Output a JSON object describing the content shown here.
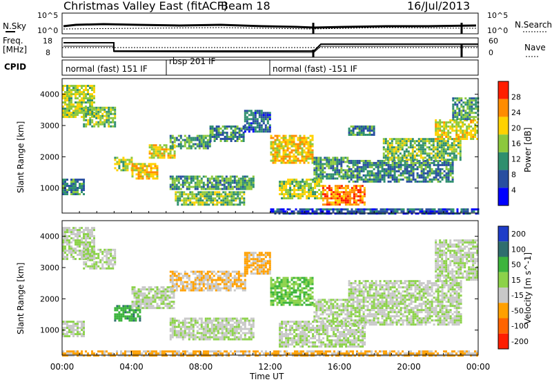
{
  "header": {
    "title": "Christmas Valley East (fitACF)",
    "beam": "Beam 18",
    "date": "16/Jul/2013"
  },
  "panels": {
    "noise": {
      "left_label": "N.Sky",
      "right_label": "N.Search",
      "left_ticks": [
        "10^5",
        "10^0"
      ],
      "right_ticks": [
        "10^5",
        "10^0"
      ]
    },
    "freq": {
      "left_label_1": "Freq.",
      "left_label_2": "[MHz]",
      "right_label": "Nave",
      "left_ticks": [
        "18",
        "8"
      ],
      "right_ticks": [
        "60",
        "0"
      ]
    },
    "cpid": {
      "label": "CPID",
      "segments": [
        {
          "label": "normal (fast) 151 IF",
          "start_hour": 0,
          "end_hour": 6
        },
        {
          "label": "rbsp 201 IF",
          "start_hour": 6,
          "end_hour": 12
        },
        {
          "label": "normal (fast) -151 IF",
          "start_hour": 12,
          "end_hour": 24
        }
      ]
    }
  },
  "chart_data": [
    {
      "type": "heatmap",
      "name": "power",
      "ylabel": "Slant Range [km]",
      "yticks": [
        "1000",
        "2000",
        "3000",
        "4000"
      ],
      "ylim": [
        200,
        4500
      ],
      "colorbar": {
        "label": "Power [dB]",
        "ticks": [
          "4",
          "8",
          "12",
          "16",
          "20",
          "24",
          "28"
        ],
        "range": [
          0,
          30
        ],
        "colors": [
          "#0000ff",
          "#284ea0",
          "#2f8f6e",
          "#8cc83c",
          "#ffd200",
          "#ff8c00",
          "#ff1e00"
        ]
      },
      "regions": [
        {
          "t0": 0.0,
          "t1": 1.8,
          "r0": 3300,
          "r1": 4300,
          "v": 16
        },
        {
          "t0": 1.2,
          "t1": 3.0,
          "r0": 3000,
          "r1": 3600,
          "v": 14
        },
        {
          "t0": 3.0,
          "t1": 4.0,
          "r0": 1600,
          "r1": 2000,
          "v": 16
        },
        {
          "t0": 4.0,
          "t1": 5.5,
          "r0": 1300,
          "r1": 1800,
          "v": 20
        },
        {
          "t0": 5.0,
          "t1": 6.5,
          "r0": 2000,
          "r1": 2400,
          "v": 18
        },
        {
          "t0": 6.2,
          "t1": 8.5,
          "r0": 2300,
          "r1": 2700,
          "v": 12
        },
        {
          "t0": 8.5,
          "t1": 10.5,
          "r0": 2500,
          "r1": 3000,
          "v": 10
        },
        {
          "t0": 10.5,
          "t1": 12.0,
          "r0": 2800,
          "r1": 3500,
          "v": 8
        },
        {
          "t0": 6.2,
          "t1": 11.0,
          "r0": 1000,
          "r1": 1400,
          "v": 12
        },
        {
          "t0": 6.5,
          "t1": 10.5,
          "r0": 500,
          "r1": 900,
          "v": 14
        },
        {
          "t0": 0.0,
          "t1": 1.2,
          "r0": 800,
          "r1": 1300,
          "v": 10
        },
        {
          "t0": 12.0,
          "t1": 14.5,
          "r0": 1800,
          "r1": 2700,
          "v": 20
        },
        {
          "t0": 14.5,
          "t1": 16.5,
          "r0": 1300,
          "r1": 2000,
          "v": 12
        },
        {
          "t0": 12.5,
          "t1": 15.0,
          "r0": 700,
          "r1": 1300,
          "v": 16
        },
        {
          "t0": 15.0,
          "t1": 17.5,
          "r0": 500,
          "r1": 1100,
          "v": 24
        },
        {
          "t0": 16.5,
          "t1": 22.5,
          "r0": 1200,
          "r1": 1900,
          "v": 10
        },
        {
          "t0": 18.5,
          "t1": 23.0,
          "r0": 1900,
          "r1": 2600,
          "v": 14
        },
        {
          "t0": 21.5,
          "t1": 24.0,
          "r0": 2600,
          "r1": 3200,
          "v": 18
        },
        {
          "t0": 22.5,
          "t1": 24.0,
          "r0": 3200,
          "r1": 3900,
          "v": 12
        },
        {
          "t0": 16.5,
          "t1": 18.0,
          "r0": 2700,
          "r1": 3000,
          "v": 10
        },
        {
          "t0": 12.0,
          "t1": 24.0,
          "r0": 200,
          "r1": 350,
          "v": 6
        }
      ]
    },
    {
      "type": "heatmap",
      "name": "velocity",
      "ylabel": "Slant Range [km]",
      "yticks": [
        "1000",
        "2000",
        "3000",
        "4000"
      ],
      "ylim": [
        200,
        4500
      ],
      "xlabel": "Time UT",
      "xticks": [
        "00:00",
        "04:00",
        "08:00",
        "12:00",
        "16:00",
        "20:00",
        "00:00"
      ],
      "xlim": [
        0,
        24
      ],
      "colorbar": {
        "label": "Velocity [m s^-1]",
        "ticks": [
          "200",
          "100",
          "50",
          "15",
          "-15",
          "-50",
          "-100",
          "-200"
        ],
        "colors": [
          "#1e3cc8",
          "#2f6e6e",
          "#3cb43c",
          "#8cd24a",
          "#c8c8c8",
          "#ffa000",
          "#ff6400",
          "#ff1e00"
        ]
      },
      "regions": [
        {
          "t0": 0.0,
          "t1": 1.8,
          "r0": 3300,
          "r1": 4300,
          "v": -5
        },
        {
          "t0": 1.2,
          "t1": 3.0,
          "r0": 3000,
          "r1": 3600,
          "v": -5
        },
        {
          "t0": 3.0,
          "t1": 4.5,
          "r0": 1300,
          "r1": 1800,
          "v": 60
        },
        {
          "t0": 4.0,
          "t1": 6.5,
          "r0": 1700,
          "r1": 2400,
          "v": -5
        },
        {
          "t0": 6.2,
          "t1": 10.5,
          "r0": 2300,
          "r1": 2900,
          "v": -30
        },
        {
          "t0": 10.5,
          "t1": 12.0,
          "r0": 2800,
          "r1": 3500,
          "v": -40
        },
        {
          "t0": 6.2,
          "t1": 11.0,
          "r0": 700,
          "r1": 1400,
          "v": -5
        },
        {
          "t0": 0.0,
          "t1": 1.2,
          "r0": 800,
          "r1": 1300,
          "v": -5
        },
        {
          "t0": 12.0,
          "t1": 14.5,
          "r0": 1800,
          "r1": 2700,
          "v": 30
        },
        {
          "t0": 14.5,
          "t1": 16.5,
          "r0": 1300,
          "r1": 2000,
          "v": -5
        },
        {
          "t0": 12.5,
          "t1": 17.5,
          "r0": 500,
          "r1": 1300,
          "v": -5
        },
        {
          "t0": 16.5,
          "t1": 23.0,
          "r0": 1200,
          "r1": 2600,
          "v": -5
        },
        {
          "t0": 21.5,
          "t1": 24.0,
          "r0": 2600,
          "r1": 3900,
          "v": -5
        },
        {
          "t0": 0.0,
          "t1": 24.0,
          "r0": 200,
          "r1": 350,
          "v": -40
        }
      ]
    }
  ]
}
